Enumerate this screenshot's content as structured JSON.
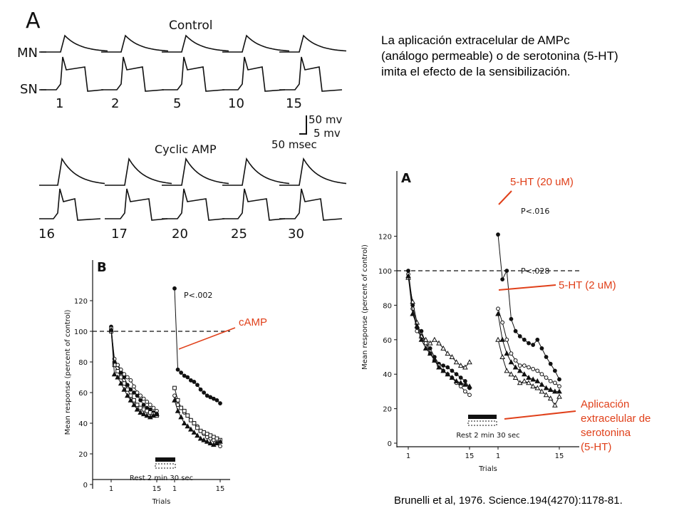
{
  "caption": {
    "line1": "La aplicación extracelular de AMPc",
    "line2": "(análogo permeable) o de serotonina (5-HT)",
    "line3": "imita el efecto de la sensibilización."
  },
  "citation": "Brunelli et al, 1976. Science.194(4270):1178-81.",
  "panel_a": {
    "letter": "A",
    "control_label": "Control",
    "cyclic_label": "Cyclic AMP",
    "mn_label": "MN",
    "sn_label": "SN",
    "control_trials": [
      "1",
      "2",
      "5",
      "10",
      "15"
    ],
    "cyclic_trials": [
      "16",
      "17",
      "20",
      "25",
      "30"
    ],
    "scale": {
      "mv50": "50 mv",
      "mv5": "5 mv",
      "msec": "50 msec"
    }
  },
  "annotations": {
    "camp": "cAMP",
    "ht20": "5-HT (20 uM)",
    "ht2": "5-HT (2 uM)",
    "app1": "Aplicación",
    "app2": "extracelular de",
    "app3": "serotonina",
    "app4": "(5-HT)"
  },
  "chart_data": [
    {
      "type": "line",
      "panel": "B",
      "ylabel": "Mean response (percent of control)",
      "xlabel": "Trials",
      "yticks": [
        "120",
        "100",
        "80",
        "60",
        "40",
        "20",
        "0"
      ],
      "xticks": [
        "1",
        "15",
        "1",
        "15"
      ],
      "ylim": [
        0,
        130
      ],
      "control_line": 100,
      "pvalue": "P<.002",
      "rest_label": "Rest 2 min 30 sec",
      "series": [
        {
          "marker": "filled-circle",
          "first_block": [
            103,
            80,
            78,
            73,
            70,
            65,
            62,
            60,
            58,
            55,
            52,
            50,
            49,
            47,
            46
          ],
          "second_block": [
            128,
            75,
            73,
            71,
            70,
            68,
            67,
            65,
            62,
            60,
            58,
            57,
            56,
            55,
            53
          ]
        },
        {
          "marker": "open-circle",
          "first_block": [
            102,
            82,
            78,
            75,
            72,
            70,
            68,
            64,
            60,
            58,
            56,
            54,
            52,
            50,
            48
          ],
          "second_block": [
            58,
            52,
            50,
            47,
            45,
            42,
            40,
            38,
            35,
            33,
            31,
            30,
            29,
            27,
            25
          ]
        },
        {
          "marker": "open-square",
          "first_block": [
            100,
            78,
            74,
            70,
            66,
            62,
            58,
            55,
            52,
            50,
            49,
            48,
            47,
            46,
            45
          ],
          "second_block": [
            63,
            55,
            50,
            48,
            45,
            42,
            40,
            37,
            35,
            34,
            33,
            32,
            31,
            30,
            29
          ]
        },
        {
          "marker": "filled-triangle",
          "first_block": [
            101,
            72,
            70,
            66,
            62,
            58,
            55,
            52,
            49,
            47,
            46,
            45,
            44,
            45,
            46
          ],
          "second_block": [
            55,
            48,
            44,
            40,
            38,
            36,
            34,
            32,
            30,
            29,
            28,
            27,
            26,
            27,
            28
          ]
        }
      ]
    },
    {
      "type": "line",
      "panel": "A",
      "ylabel": "Mean response (percent of control)",
      "xlabel": "Trials",
      "yticks": [
        "120",
        "100",
        "80",
        "60",
        "40",
        "20",
        "0"
      ],
      "xticks": [
        "1",
        "15",
        "1",
        "15"
      ],
      "ylim": [
        0,
        125
      ],
      "control_line": 100,
      "pvalue_top": "P<.016",
      "pvalue_bottom": "P<.028",
      "rest_label": "Rest 2 min 30 sec",
      "series": [
        {
          "marker": "filled-circle",
          "first_block": [
            100,
            80,
            67,
            65,
            58,
            55,
            50,
            46,
            45,
            44,
            42,
            40,
            38,
            36,
            32
          ],
          "second_block": [
            121,
            95,
            100,
            72,
            65,
            62,
            60,
            58,
            57,
            60,
            55,
            50,
            46,
            42,
            37
          ]
        },
        {
          "marker": "open-circle",
          "first_block": [
            98,
            78,
            65,
            62,
            58,
            52,
            48,
            45,
            42,
            40,
            38,
            35,
            33,
            30,
            28
          ],
          "second_block": [
            78,
            70,
            60,
            52,
            48,
            45,
            45,
            44,
            43,
            42,
            40,
            38,
            36,
            35,
            33
          ]
        },
        {
          "marker": "open-triangle",
          "first_block": [
            96,
            82,
            70,
            62,
            60,
            58,
            60,
            58,
            55,
            52,
            50,
            47,
            45,
            44,
            47
          ],
          "second_block": [
            60,
            50,
            42,
            40,
            38,
            35,
            36,
            35,
            33,
            32,
            30,
            28,
            26,
            22,
            27
          ]
        },
        {
          "marker": "filled-triangle",
          "first_block": [
            97,
            75,
            68,
            60,
            55,
            52,
            48,
            44,
            42,
            40,
            38,
            36,
            35,
            34,
            33
          ],
          "second_block": [
            75,
            60,
            52,
            47,
            44,
            42,
            40,
            38,
            37,
            36,
            34,
            32,
            31,
            30,
            30
          ]
        }
      ]
    }
  ]
}
